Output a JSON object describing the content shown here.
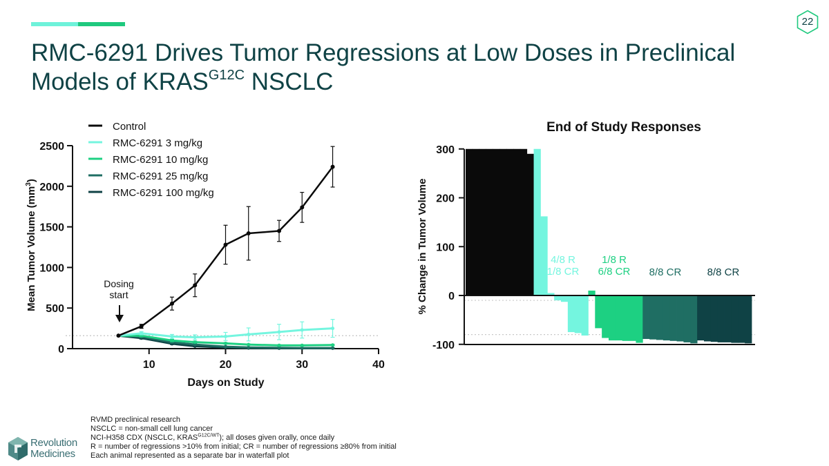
{
  "page_number": "22",
  "title": {
    "main": "RMC-6291 Drives Tumor Regressions at Low Doses in Preclinical Models of KRAS",
    "superscript": "G12C",
    "suffix": " NSCLC"
  },
  "colors": {
    "accent_light": "#6ef2da",
    "accent_green": "#1fc97e",
    "title": "#0f4245",
    "control": "#0a0a0a",
    "dose_3": "#74f5df",
    "dose_10": "#1dd082",
    "dose_25": "#1f6e63",
    "dose_100": "#0f4245"
  },
  "chart_data": [
    {
      "type": "line",
      "title": "",
      "xlabel": "Days on Study",
      "ylabel": "Mean Tumor Volume (mm",
      "ylabel_sup": "3",
      "ylabel_end": ")",
      "xlim": [
        0,
        40
      ],
      "ylim": [
        0,
        2500
      ],
      "xticks": [
        "10",
        "20",
        "30",
        "40"
      ],
      "xtick_values": [
        10,
        20,
        30,
        40
      ],
      "yticks": [
        "0",
        "500",
        "1000",
        "1500",
        "2000",
        "2500"
      ],
      "ytick_values": [
        0,
        500,
        1000,
        1500,
        2000,
        2500
      ],
      "baseline": 160,
      "annotation": {
        "line1": "Dosing",
        "line2": "start",
        "x": 6
      },
      "series": [
        {
          "name": "Control",
          "color": "#0a0a0a",
          "x": [
            6,
            9,
            13,
            16,
            20,
            23,
            27,
            30,
            34
          ],
          "y": [
            160,
            275,
            555,
            780,
            1280,
            1420,
            1450,
            1740,
            2240
          ],
          "err": [
            0,
            25,
            80,
            140,
            240,
            330,
            130,
            185,
            250
          ]
        },
        {
          "name": "RMC-6291 3 mg/kg",
          "color": "#74f5df",
          "x": [
            6,
            9,
            13,
            16,
            20,
            23,
            27,
            30,
            34
          ],
          "y": [
            160,
            190,
            150,
            140,
            150,
            175,
            205,
            230,
            250
          ],
          "err": [
            0,
            20,
            25,
            30,
            50,
            80,
            95,
            100,
            110
          ]
        },
        {
          "name": "RMC-6291 10 mg/kg",
          "color": "#1dd082",
          "x": [
            6,
            9,
            13,
            16,
            20,
            23,
            27,
            30,
            34
          ],
          "y": [
            160,
            160,
            100,
            80,
            65,
            50,
            40,
            40,
            45
          ],
          "err": [
            0,
            15,
            15,
            12,
            10,
            8,
            8,
            8,
            8
          ]
        },
        {
          "name": "RMC-6291 25 mg/kg",
          "color": "#1f6e63",
          "x": [
            6,
            9,
            13,
            16,
            20,
            23,
            27,
            30,
            34
          ],
          "y": [
            160,
            145,
            80,
            50,
            25,
            15,
            10,
            8,
            8
          ],
          "err": [
            0,
            12,
            12,
            8,
            5,
            4,
            3,
            3,
            3
          ]
        },
        {
          "name": "RMC-6291 100 mg/kg",
          "color": "#0f4245",
          "x": [
            6,
            9,
            13,
            16,
            20,
            23,
            27,
            30,
            34
          ],
          "y": [
            160,
            130,
            60,
            30,
            15,
            8,
            5,
            5,
            5
          ],
          "err": [
            0,
            12,
            10,
            6,
            4,
            3,
            2,
            2,
            2
          ]
        }
      ]
    },
    {
      "type": "bar",
      "title": "End of Study Responses",
      "xlabel": "",
      "ylabel": "% Change in Tumor Volume",
      "ylim": [
        -100,
        300
      ],
      "yticks": [
        "-100",
        "0",
        "100",
        "200",
        "300"
      ],
      "ytick_values": [
        -100,
        0,
        100,
        200,
        300
      ],
      "reference_lines": [
        -10,
        -80
      ],
      "groups": [
        {
          "name": "Control",
          "color": "#0a0a0a",
          "values": [
            300,
            300,
            300,
            300,
            300,
            300,
            300,
            300,
            300,
            290
          ]
        },
        {
          "name": "RMC-6291 3 mg/kg",
          "color": "#74f5df",
          "values": [
            300,
            162,
            5,
            -10,
            -13,
            -75,
            -77,
            -82
          ],
          "label1": "4/8 R",
          "label2": "1/8 CR"
        },
        {
          "name": "RMC-6291 10 mg/kg",
          "color": "#1dd082",
          "values": [
            10,
            -67,
            -87,
            -92,
            -92,
            -93,
            -93,
            -97
          ],
          "label1": "1/8 R",
          "label2": "6/8 CR"
        },
        {
          "name": "RMC-6291 25 mg/kg",
          "color": "#1f6e63",
          "values": [
            -89,
            -90,
            -91,
            -92,
            -93,
            -94,
            -96,
            -98
          ],
          "label1": "8/8 CR",
          "label2": ""
        },
        {
          "name": "RMC-6291 100 mg/kg",
          "color": "#0f4245",
          "values": [
            -92,
            -94,
            -95,
            -96,
            -96,
            -97,
            -97,
            -98
          ],
          "label1": "8/8 CR",
          "label2": ""
        }
      ]
    }
  ],
  "footnotes": {
    "line1": "RVMD preclinical research",
    "line2": "NSCLC = non-small cell lung cancer",
    "line3_pre": "NCI-H358 CDX (NSCLC, KRAS",
    "line3_sup": "G12C/WT",
    "line3_post": "); all doses given orally, once daily",
    "line4": "R = number of regressions >10% from initial; CR = number of regressions ≥80% from initial",
    "line5": "Each animal represented as a separate bar in waterfall plot"
  },
  "logo": {
    "line1": "Revolution",
    "line2": "Medicines"
  }
}
